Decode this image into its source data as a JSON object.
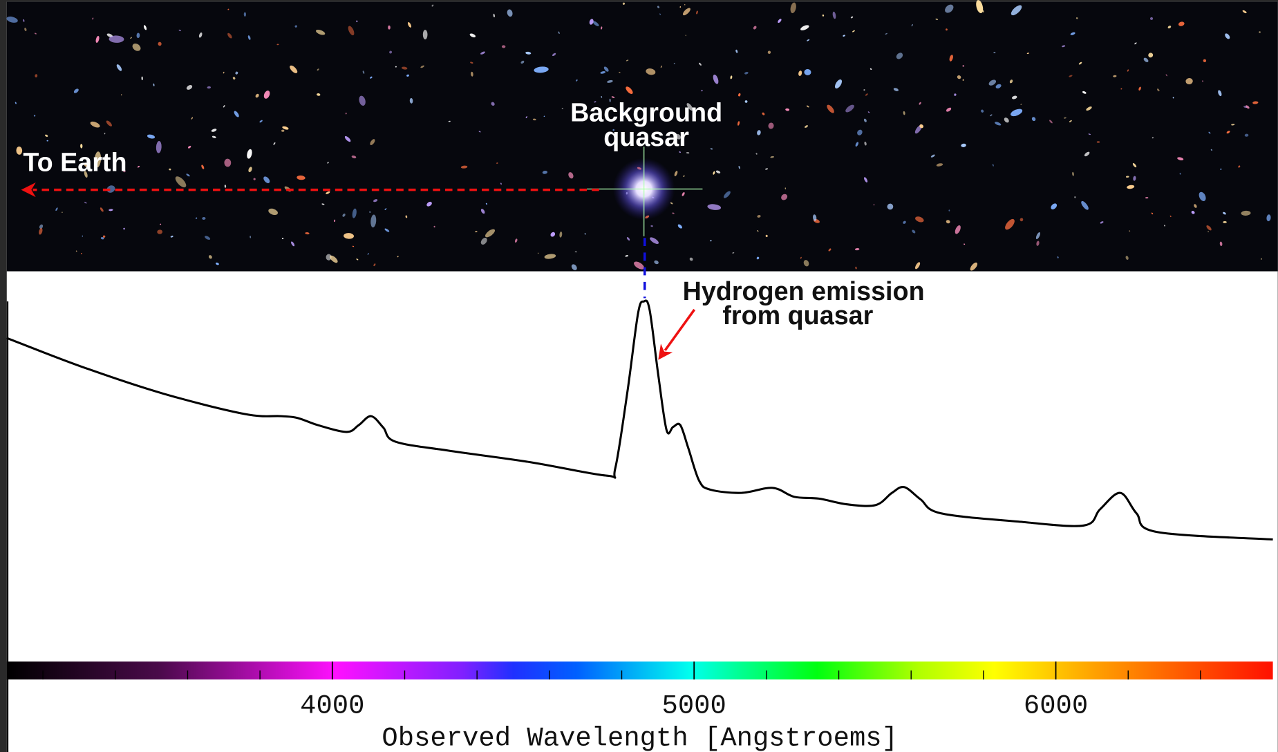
{
  "chart_data": {
    "type": "line",
    "xlabel": "Observed Wavelength [Angstroems]",
    "xlim": [
      3100,
      6600
    ],
    "xticks": [
      4000,
      5000,
      6000
    ],
    "minor_xticks": [
      3200,
      3400,
      3600,
      3800,
      4200,
      4400,
      4600,
      4800,
      5200,
      5400,
      5600,
      5800,
      6200,
      6400
    ],
    "ylim": [
      0,
      100
    ],
    "series": [
      {
        "color": "#000000",
        "x": [
          3100,
          3307,
          3532,
          3758,
          3859,
          3904,
          3960,
          4039,
          4073,
          4107,
          4141,
          4174,
          4320,
          4545,
          4759,
          4782,
          4816,
          4845,
          4861,
          4877,
          4901,
          4924,
          4942,
          4962,
          4984,
          5014,
          5045,
          5131,
          5217,
          5277,
          5345,
          5423,
          5502,
          5547,
          5581,
          5626,
          5682,
          5896,
          6077,
          6122,
          6178,
          6223,
          6279,
          6600
        ],
        "values": [
          89.8,
          81.8,
          74.3,
          68.6,
          68,
          67.5,
          65.5,
          63.6,
          65.5,
          68,
          64.8,
          60.9,
          58.4,
          55.2,
          51.4,
          53.4,
          75,
          96.6,
          100,
          97.7,
          79.5,
          64.1,
          65,
          65.5,
          59.1,
          50,
          47.5,
          46.6,
          48,
          45.5,
          45,
          43.4,
          43.2,
          46.6,
          48.2,
          44.8,
          40.9,
          38.6,
          37.5,
          42,
          46.6,
          40.9,
          35.7,
          33.6
        ]
      }
    ],
    "annotations": [
      {
        "lines": [
          "To Earth"
        ]
      },
      {
        "lines": [
          "Background",
          "quasar"
        ]
      },
      {
        "lines": [
          "Hydrogen emission",
          "from quasar"
        ]
      }
    ]
  }
}
